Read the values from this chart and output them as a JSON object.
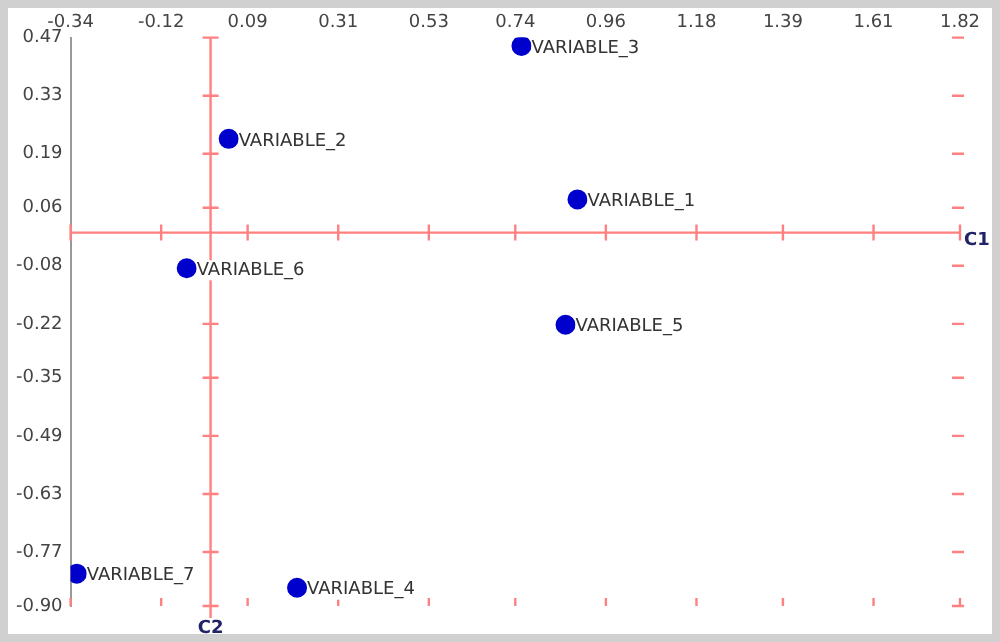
{
  "chart_data": {
    "type": "scatter",
    "series": [
      {
        "color": "#0000cc",
        "x": [
          0.891,
          0.044,
          0.755,
          0.21,
          0.862,
          -0.058,
          -0.325
        ],
        "values": [
          0.08,
          0.226,
          0.45,
          -0.856,
          -0.222,
          -0.086,
          -0.822
        ]
      }
    ],
    "annotations": [
      {
        "text": "VARIABLE_1",
        "x": 0.891,
        "y": 0.08
      },
      {
        "text": "VARIABLE_2",
        "x": 0.044,
        "y": 0.226
      },
      {
        "text": "VARIABLE_3",
        "x": 0.755,
        "y": 0.45
      },
      {
        "text": "VARIABLE_4",
        "x": 0.21,
        "y": -0.856
      },
      {
        "text": "VARIABLE_5",
        "x": 0.862,
        "y": -0.222
      },
      {
        "text": "VARIABLE_6",
        "x": -0.058,
        "y": -0.086
      },
      {
        "text": "VARIABLE_7",
        "x": -0.325,
        "y": -0.822
      }
    ],
    "xlim": [
      -0.34,
      1.82
    ],
    "xticks": [
      -0.34,
      -0.12,
      0.09,
      0.31,
      0.53,
      0.74,
      0.96,
      1.18,
      1.39,
      1.61,
      1.82
    ],
    "ylim": [
      -0.9,
      0.47
    ],
    "yticks": [
      0.47,
      0.33,
      0.19,
      0.06,
      -0.08,
      -0.22,
      -0.35,
      -0.49,
      -0.63,
      -0.77,
      {
        "value": -0.9,
        "label": "-0.90"
      }
    ],
    "ref_lines": [
      {
        "axis": "x",
        "value": 0,
        "label": "C2",
        "color": "#ff8080"
      },
      {
        "axis": "y",
        "value": 0,
        "label": "C1",
        "color": "#ff8080"
      }
    ],
    "grid": false,
    "legend": false,
    "marker": "circle"
  }
}
